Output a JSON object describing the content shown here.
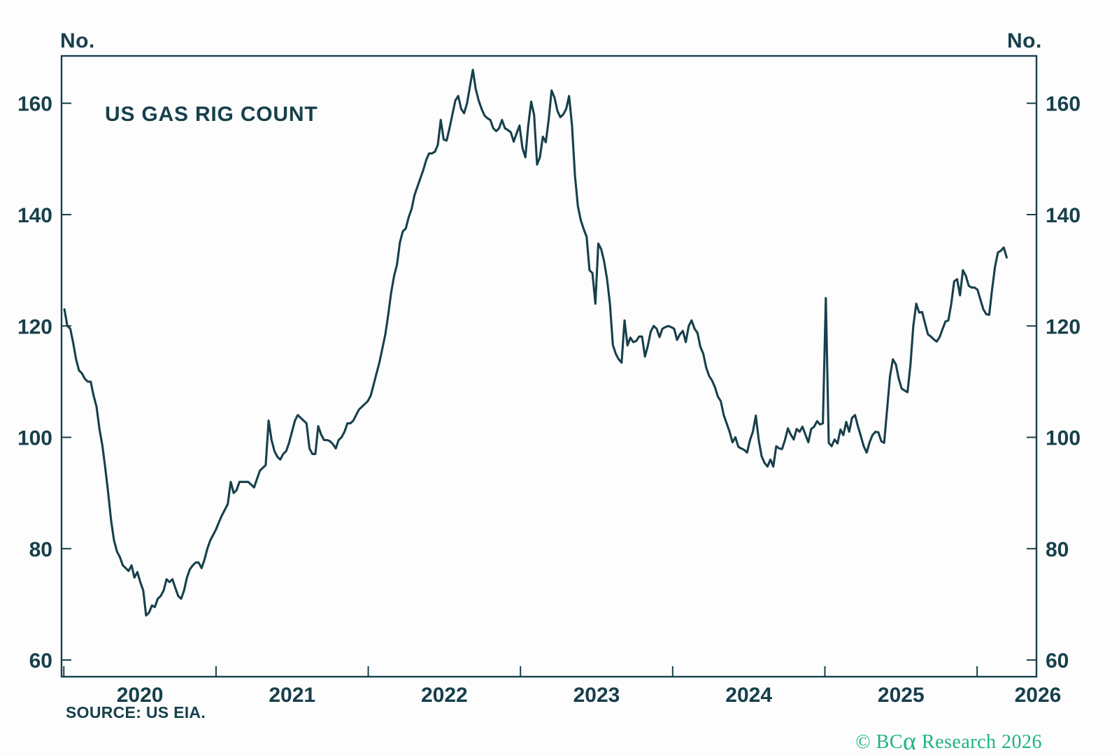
{
  "page": {
    "unit_label_left": "No.",
    "unit_label_right": "No.",
    "source_label": "SOURCE: US EIA.",
    "copyright_prefix": "© BC",
    "copyright_alpha": "α",
    "copyright_suffix": " Research 2026"
  },
  "colors": {
    "ink": "#17404B",
    "line": "#17404B",
    "brand_green": "#1CB47E",
    "background": "#FDFDFD"
  },
  "chart_data": {
    "type": "line",
    "title": "US GAS RIG COUNT",
    "xlabel": "",
    "ylabel": "No.",
    "ylabel_right": "No.",
    "grid": false,
    "legend": "none",
    "ylim": [
      57,
      168.5
    ],
    "xlim": [
      2019.985,
      2026.39
    ],
    "yticks": [
      60,
      80,
      100,
      120,
      140,
      160
    ],
    "xticks": [
      2020,
      2021,
      2022,
      2023,
      2024,
      2025,
      2026
    ],
    "xtick_year_labels": [
      "2020",
      "2021",
      "2022",
      "2023",
      "2024",
      "2025",
      "2026"
    ],
    "series": [
      {
        "name": "US gas rig count (weekly)",
        "x_start_year": 2020.004,
        "x_interval_years": 0.0191651,
        "values": [
          123,
          120,
          119.5,
          117,
          114,
          112,
          111.5,
          110.5,
          110,
          110,
          107.5,
          105.5,
          101.5,
          98.5,
          94.5,
          90,
          85,
          81.5,
          79.5,
          78.5,
          77,
          76.5,
          76,
          77,
          74.8,
          75.8,
          74,
          72.5,
          68,
          68.5,
          69.8,
          69.5,
          71,
          71.5,
          72.5,
          74.5,
          74,
          74.5,
          73,
          71.5,
          71,
          72.5,
          74.8,
          76.3,
          77,
          77.5,
          77.5,
          76.5,
          78,
          80,
          81.5,
          82.5,
          83.5,
          84.8,
          86,
          87,
          88,
          92,
          90,
          90.5,
          92,
          92,
          92,
          92,
          91.5,
          91,
          92.5,
          94,
          94.5,
          95,
          103,
          99.5,
          97.5,
          96.5,
          96,
          97,
          97.5,
          99,
          101,
          103,
          104,
          103.5,
          103,
          102.5,
          98,
          97,
          97,
          102,
          100.5,
          99.5,
          99.5,
          99.3,
          98.8,
          98,
          99.5,
          100,
          101,
          102.5,
          102.5,
          103,
          104,
          105,
          105.5,
          106,
          106.5,
          107.5,
          109.5,
          111.5,
          113.5,
          116,
          118.5,
          122,
          126,
          129,
          131,
          135,
          137,
          137.5,
          139.5,
          141,
          143.5,
          145,
          146.5,
          148,
          149.8,
          151,
          151,
          151.3,
          152.5,
          157,
          153.5,
          153.3,
          155.5,
          158,
          160.5,
          161.3,
          159,
          158.2,
          160,
          163,
          166,
          162.5,
          160.5,
          159,
          157.8,
          157.3,
          157,
          155.5,
          155,
          155.5,
          157,
          155.5,
          155.2,
          154.8,
          153.1,
          154.6,
          156,
          152,
          150.3,
          156,
          160.3,
          157.9,
          149,
          150.3,
          154,
          153,
          157,
          162.3,
          161,
          158.6,
          157.5,
          158,
          159,
          161.3,
          156,
          147,
          141.5,
          139,
          137.4,
          136,
          130,
          129.5,
          124,
          134.8,
          133.8,
          131.6,
          128.4,
          124,
          116.6,
          115,
          114,
          113.4,
          121,
          116.5,
          117.9,
          117.1,
          117.3,
          118.1,
          118.1,
          114.5,
          116.5,
          119,
          120,
          119.5,
          118,
          119.5,
          119.8,
          120,
          119.8,
          119.5,
          117.5,
          118.5,
          119.1,
          117.1,
          120,
          121,
          119.5,
          118.75,
          116.25,
          115,
          112.5,
          111,
          110.2,
          109,
          107.3,
          106.5,
          104,
          102.5,
          101,
          99.1,
          100,
          98.3,
          98,
          97.75,
          97.25,
          99.5,
          101,
          103.9,
          99.5,
          96.6,
          95.4,
          94.75,
          96,
          94.75,
          98.4,
          98,
          97.9,
          99.5,
          101.6,
          100.5,
          99.6,
          101.5,
          101,
          101.9,
          100.5,
          99.1,
          101.5,
          101.9,
          102.9,
          102.3,
          102.5,
          125,
          99,
          98.4,
          99.6,
          98.9,
          101.4,
          100.4,
          102.75,
          101,
          103.5,
          104,
          102,
          100.2,
          98.4,
          97.25,
          99.1,
          100.4,
          101,
          100.9,
          99.3,
          99,
          105,
          111,
          114,
          113.1,
          110.5,
          108.75,
          108.4,
          108.1,
          113,
          120,
          124,
          122.4,
          122.5,
          120.5,
          118.5,
          118.1,
          117.6,
          117.2,
          118,
          119.4,
          120.8,
          121,
          124,
          128,
          128.4,
          125.5,
          130,
          129,
          127.2,
          126.9,
          126.9,
          126.5,
          124.7,
          123,
          122.1,
          122,
          126.6,
          130.6,
          133.2,
          133.5,
          134.1,
          132.3
        ]
      }
    ]
  }
}
